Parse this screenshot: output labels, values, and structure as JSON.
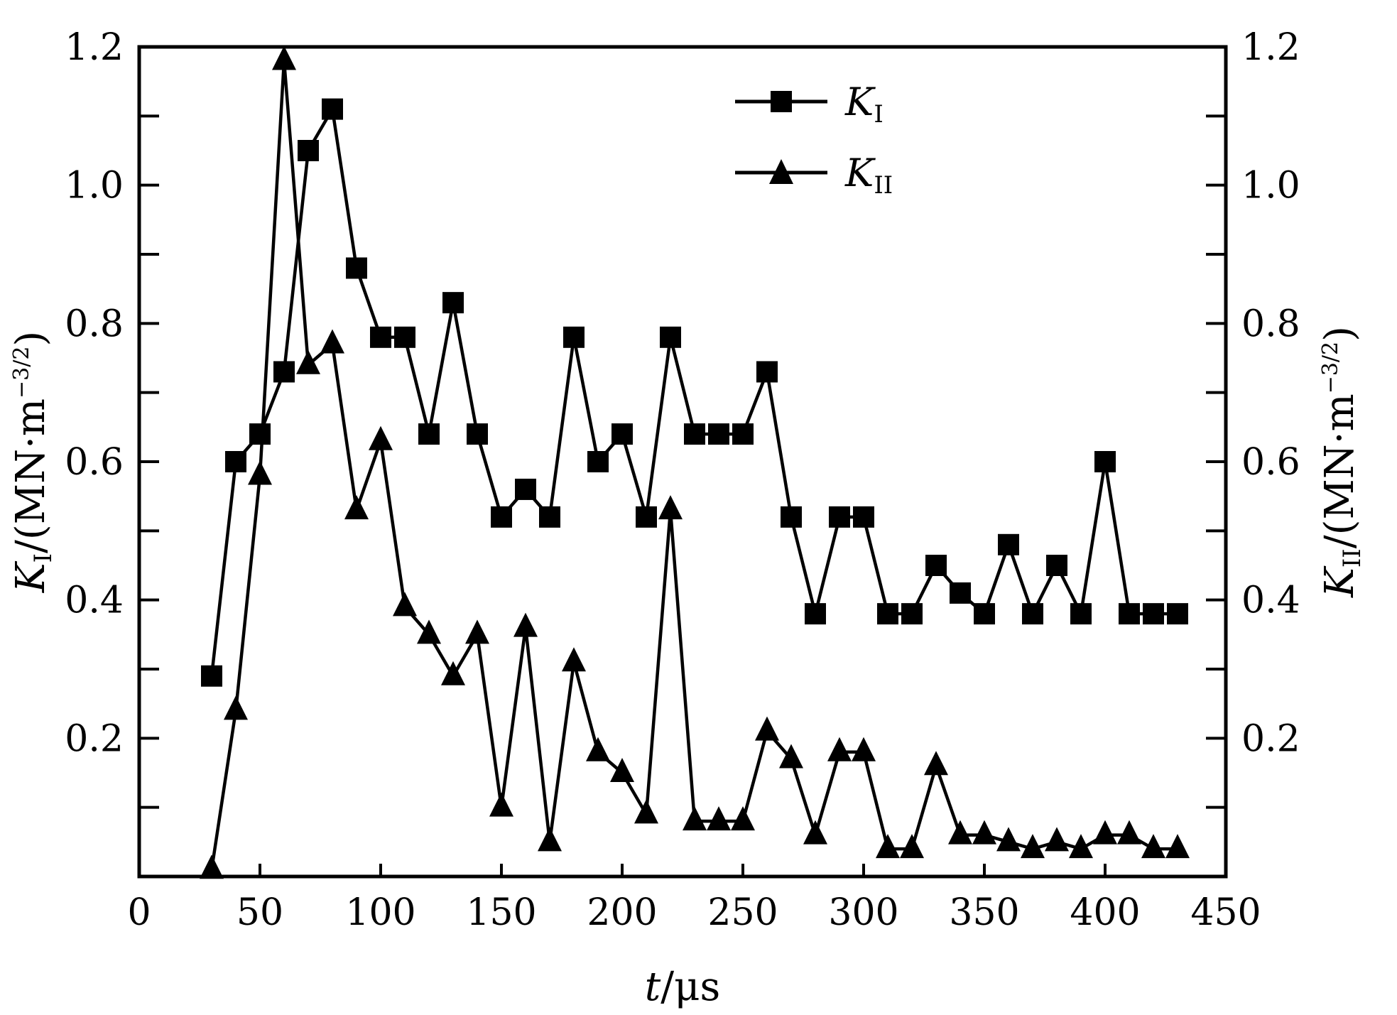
{
  "chart_data": {
    "type": "line",
    "xlabel": {
      "var": "t",
      "unit": "/μs"
    },
    "ylabel_left": {
      "var": "K",
      "sub": "I",
      "unit": "/(MN·m",
      "sup": "−3/2",
      "close": ")"
    },
    "ylabel_right": {
      "var": "K",
      "sub": "II",
      "unit": "/(MN·m",
      "sup": "−3/2",
      "close": ")"
    },
    "xlim": [
      0,
      450
    ],
    "ylim": [
      0,
      1.2
    ],
    "x_ticks": [
      "0",
      "50",
      "100",
      "150",
      "200",
      "250",
      "300",
      "350",
      "400",
      "450"
    ],
    "y_ticks": [
      "0.2",
      "0.4",
      "0.6",
      "0.8",
      "1.0",
      "1.2"
    ],
    "grid": false,
    "legend_position": "top-center",
    "series": [
      {
        "name": "K_I",
        "legend_var": "K",
        "legend_sub": "I",
        "marker": "square",
        "x": [
          30,
          40,
          50,
          60,
          70,
          80,
          90,
          100,
          110,
          120,
          130,
          140,
          150,
          160,
          170,
          180,
          190,
          200,
          210,
          220,
          230,
          240,
          250,
          260,
          270,
          280,
          290,
          300,
          310,
          320,
          330,
          340,
          350,
          360,
          370,
          380,
          390,
          400,
          410,
          420,
          430
        ],
        "values": [
          0.29,
          0.6,
          0.64,
          0.73,
          1.05,
          1.11,
          0.88,
          0.78,
          0.78,
          0.64,
          0.83,
          0.64,
          0.52,
          0.56,
          0.52,
          0.78,
          0.6,
          0.64,
          0.52,
          0.78,
          0.64,
          0.64,
          0.64,
          0.73,
          0.52,
          0.38,
          0.52,
          0.52,
          0.38,
          0.38,
          0.45,
          0.41,
          0.38,
          0.48,
          0.38,
          0.45,
          0.38,
          0.6,
          0.38,
          0.38,
          0.38
        ]
      },
      {
        "name": "K_II",
        "legend_var": "K",
        "legend_sub": "II",
        "marker": "triangle",
        "x": [
          30,
          40,
          50,
          60,
          70,
          80,
          90,
          100,
          110,
          120,
          130,
          140,
          150,
          160,
          170,
          180,
          190,
          200,
          210,
          220,
          230,
          240,
          250,
          260,
          270,
          280,
          290,
          300,
          310,
          320,
          330,
          340,
          350,
          360,
          370,
          380,
          390,
          400,
          410,
          420,
          430
        ],
        "values": [
          0.01,
          0.24,
          0.58,
          1.18,
          0.74,
          0.77,
          0.53,
          0.63,
          0.39,
          0.35,
          0.29,
          0.35,
          0.1,
          0.36,
          0.05,
          0.31,
          0.18,
          0.15,
          0.09,
          0.53,
          0.08,
          0.08,
          0.08,
          0.21,
          0.17,
          0.06,
          0.18,
          0.18,
          0.04,
          0.04,
          0.16,
          0.06,
          0.06,
          0.05,
          0.04,
          0.05,
          0.04,
          0.06,
          0.06,
          0.04,
          0.04
        ]
      }
    ]
  }
}
